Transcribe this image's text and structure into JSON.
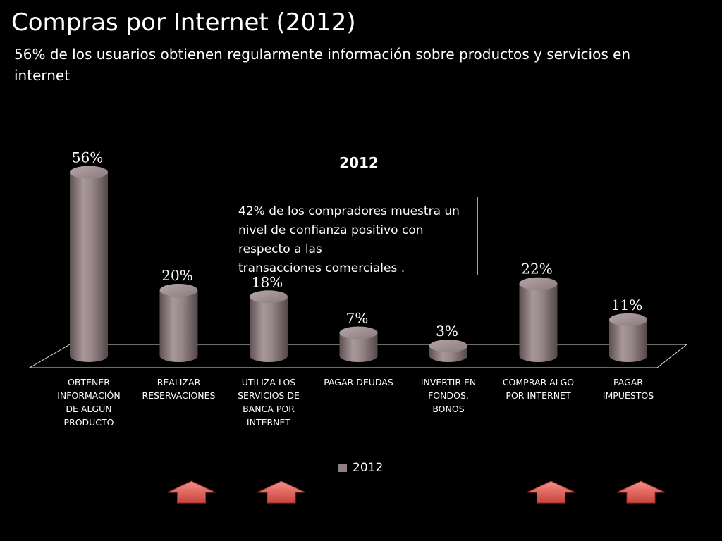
{
  "slide": {
    "title": "Compras por Internet (2012)",
    "subtitle": "56% de los usuarios obtienen regularmente información sobre productos y servicios en internet"
  },
  "callout": {
    "lines": [
      "42% de los compradores muestra un",
      "nivel de confianza positivo  con",
      "respecto a las",
      "transacciones comerciales ."
    ]
  },
  "chart_data": {
    "type": "bar",
    "title": "2012",
    "categories": [
      "OBTENER INFORMACIÓN DE ALGÚN PRODUCTO",
      "REALIZAR RESERVACIONES",
      "UTILIZA LOS SERVICIOS DE BANCA POR INTERNET",
      "PAGAR DEUDAS",
      "INVERTIR EN FONDOS, BONOS",
      "COMPRAR  ALGO POR INTERNET",
      "PAGAR IMPUESTOS"
    ],
    "category_lines": [
      [
        "OBTENER",
        "INFORMACIÓN",
        "DE ALGÚN",
        "PRODUCTO"
      ],
      [
        "REALIZAR",
        "RESERVACIONES"
      ],
      [
        "UTILIZA LOS",
        "SERVICIOS DE",
        "BANCA POR",
        "INTERNET"
      ],
      [
        "PAGAR DEUDAS"
      ],
      [
        "INVERTIR EN",
        "FONDOS,",
        "BONOS"
      ],
      [
        "COMPRAR  ALGO",
        "POR INTERNET"
      ],
      [
        "PAGAR",
        "IMPUESTOS"
      ]
    ],
    "series": [
      {
        "name": "2012",
        "values": [
          56,
          20,
          18,
          7,
          3,
          22,
          11
        ],
        "color": "#8f7f80"
      }
    ],
    "data_labels": [
      "56%",
      "20%",
      "18%",
      "7%",
      "3%",
      "22%",
      "11%"
    ],
    "ylim": [
      0,
      60
    ],
    "shape": "cylinder",
    "legend_position": "bottom",
    "highlighted_categories": [
      1,
      2,
      5,
      6
    ],
    "highlight_marker": "up-arrow",
    "highlight_color": "#e8675f"
  }
}
